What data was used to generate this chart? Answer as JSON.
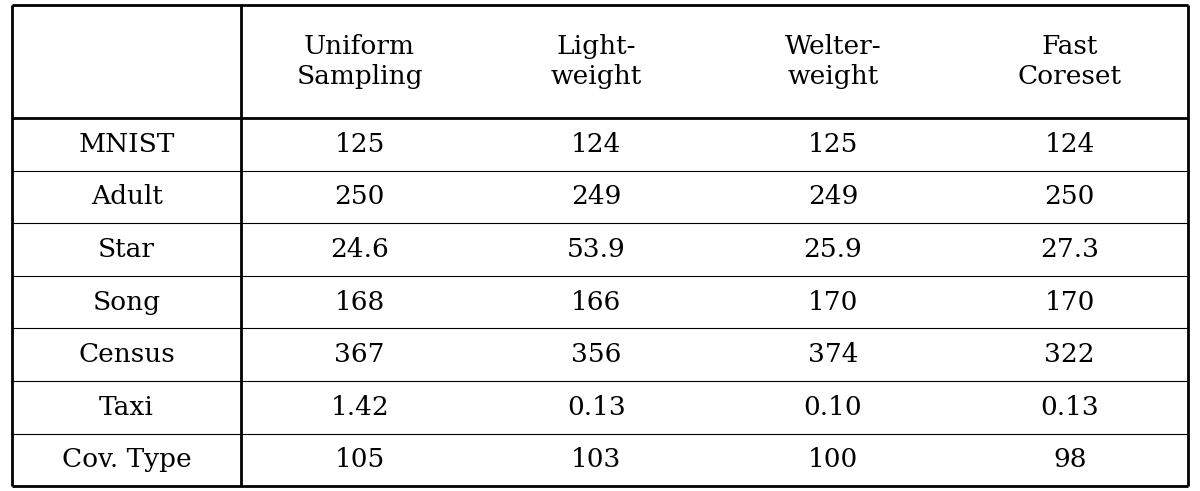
{
  "col_headers": [
    "Uniform\nSampling",
    "Light-\nweight",
    "Welter-\nweight",
    "Fast\nCoreset"
  ],
  "row_labels": [
    "MNIST",
    "Adult",
    "Star",
    "Song",
    "Census",
    "Taxi",
    "Cov. Type"
  ],
  "table_data": [
    [
      "125",
      "124",
      "125",
      "124"
    ],
    [
      "250",
      "249",
      "249",
      "250"
    ],
    [
      "24.6",
      "53.9",
      "25.9",
      "27.3"
    ],
    [
      "168",
      "166",
      "170",
      "170"
    ],
    [
      "367",
      "356",
      "374",
      "322"
    ],
    [
      "1.42",
      "0.13",
      "0.10",
      "0.13"
    ],
    [
      "105",
      "103",
      "100",
      "98"
    ]
  ],
  "bg_color": "#ffffff",
  "text_color": "#000000",
  "font_size": 19,
  "header_font_size": 19,
  "outer_lw": 2.0,
  "inner_lw": 0.8,
  "header_sep_lw": 2.0,
  "col0_sep_lw": 2.0
}
